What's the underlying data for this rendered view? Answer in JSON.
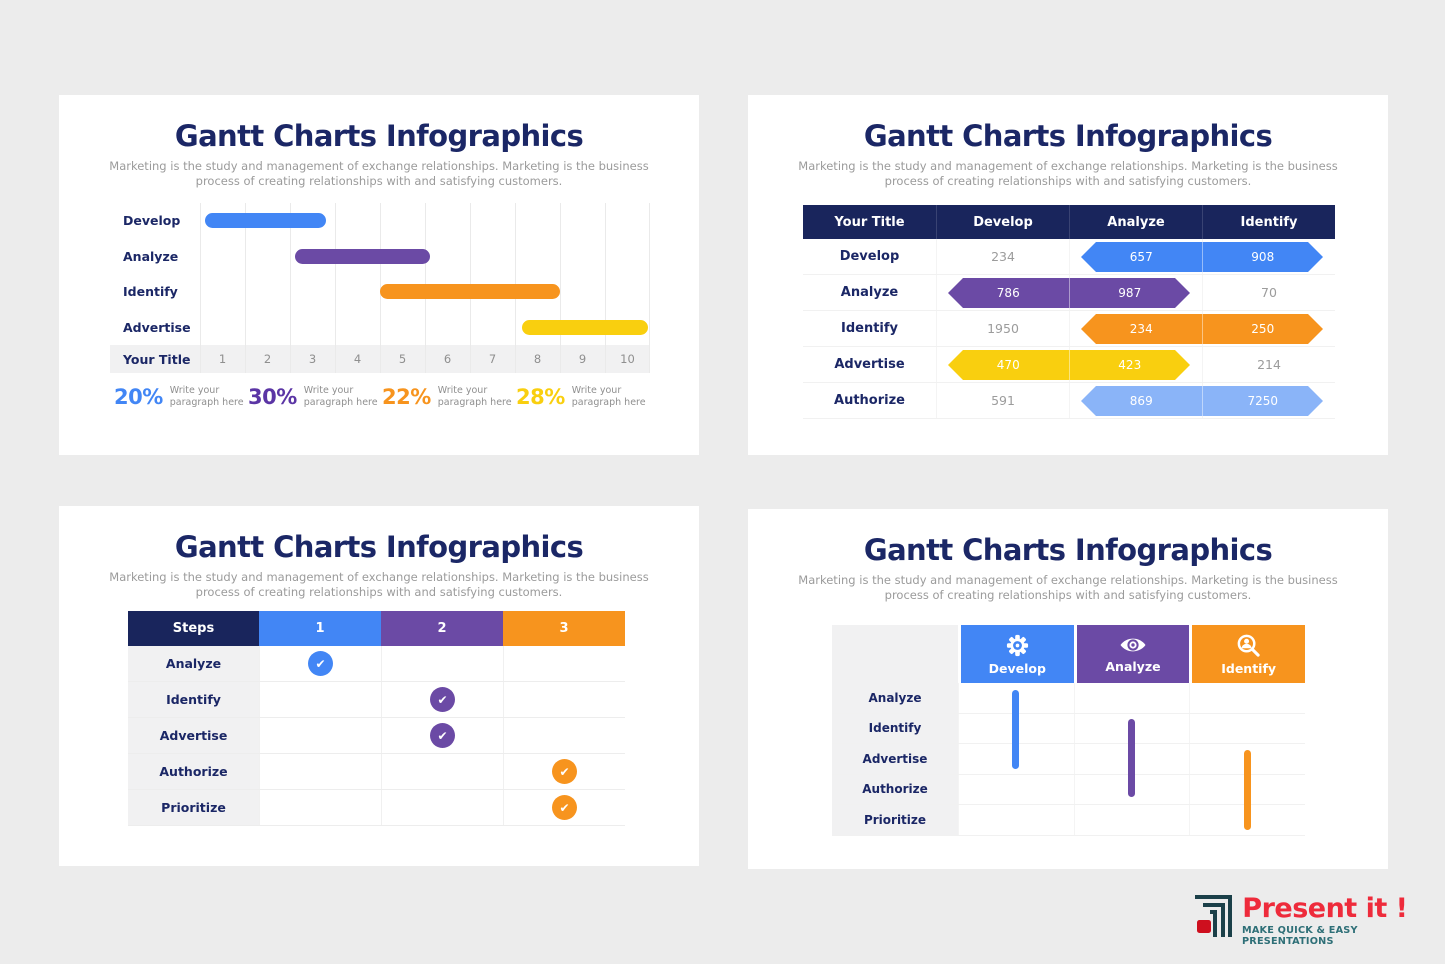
{
  "canvas": {
    "background": "#ECECEC",
    "card_background": "#FFFFFF"
  },
  "theme": {
    "title_navy": "#1B2766",
    "header_navy": "#19255C",
    "blue": "#4286F5",
    "purple": "#6B4AA5",
    "orange": "#F7941E",
    "yellow": "#F9CF0F",
    "light_blue": "#8AB4F8",
    "muted_text": "#9B9B9B",
    "value_gray": "#9C9C9C"
  },
  "panels": [
    {
      "title": "Gantt Charts Infographics",
      "subtitle": "Marketing is the study and management of exchange relationships. Marketing is the business\nprocess of creating relationships with and satisfying customers.",
      "stats": [
        {
          "value": "20%",
          "color": "#4286F5",
          "caption": "Write your\nparagraph here"
        },
        {
          "value": "30%",
          "color": "#5B35A5",
          "caption": "Write your\nparagraph here"
        },
        {
          "value": "22%",
          "color": "#F7941E",
          "caption": "Write your\nparagraph here"
        },
        {
          "value": "28%",
          "color": "#F9CF0F",
          "caption": "Write your\nparagraph here"
        }
      ]
    },
    {
      "title": "Gantt Charts Infographics",
      "subtitle": "Marketing is the study and management of exchange relationships. Marketing is the business\nprocess of creating relationships with and satisfying customers."
    },
    {
      "title": "Gantt Charts Infographics",
      "subtitle": "Marketing is the study and management of exchange relationships. Marketing is the business\nprocess of creating relationships with and satisfying customers."
    },
    {
      "title": "Gantt Charts Infographics",
      "subtitle": "Marketing is the study and management of exchange relationships. Marketing is the business\nprocess of creating relationships with and satisfying customers."
    }
  ],
  "chart_data": [
    {
      "type": "gantt",
      "axis_title": "Your Title",
      "x_ticks": [
        "1",
        "2",
        "3",
        "4",
        "5",
        "6",
        "7",
        "8",
        "9",
        "10"
      ],
      "xlim": [
        0,
        10
      ],
      "rows": [
        {
          "label": "Develop",
          "start": 0.1,
          "end": 2.8,
          "color": "#4286F5"
        },
        {
          "label": "Analyze",
          "start": 2.1,
          "end": 5.1,
          "color": "#6B4AA5"
        },
        {
          "label": "Identify",
          "start": 4.0,
          "end": 8.0,
          "color": "#F7941E"
        },
        {
          "label": "Advertise",
          "start": 7.15,
          "end": 9.95,
          "color": "#F9CF0F"
        }
      ]
    },
    {
      "type": "table",
      "columns": [
        "Your Title",
        "Develop",
        "Analyze",
        "Identify"
      ],
      "rows": [
        {
          "label": "Develop",
          "plain": [
            {
              "col": 0,
              "value": "234"
            }
          ],
          "arrow": {
            "cols": [
              1,
              2
            ],
            "values": [
              "657",
              "908"
            ],
            "color": "#4286F5"
          }
        },
        {
          "label": "Analyze",
          "plain": [
            {
              "col": 2,
              "value": "70"
            }
          ],
          "arrow": {
            "cols": [
              0,
              1
            ],
            "values": [
              "786",
              "987"
            ],
            "color": "#6B4AA5"
          }
        },
        {
          "label": "Identify",
          "plain": [
            {
              "col": 0,
              "value": "1950"
            }
          ],
          "arrow": {
            "cols": [
              1,
              2
            ],
            "values": [
              "234",
              "250"
            ],
            "color": "#F7941E"
          }
        },
        {
          "label": "Advertise",
          "plain": [
            {
              "col": 2,
              "value": "214"
            }
          ],
          "arrow": {
            "cols": [
              0,
              1
            ],
            "values": [
              "470",
              "423"
            ],
            "color": "#F9CF0F"
          }
        },
        {
          "label": "Authorize",
          "plain": [
            {
              "col": 0,
              "value": "591"
            }
          ],
          "arrow": {
            "cols": [
              1,
              2
            ],
            "values": [
              "869",
              "7250"
            ],
            "color": "#8AB4F8"
          }
        }
      ]
    },
    {
      "type": "step-check-table",
      "columns": [
        {
          "label": "Steps",
          "color": "#19255C"
        },
        {
          "label": "1",
          "color": "#4286F5"
        },
        {
          "label": "2",
          "color": "#6B4AA5"
        },
        {
          "label": "3",
          "color": "#F7941E"
        }
      ],
      "check_glyph": "✔",
      "rows": [
        {
          "label": "Analyze",
          "checked_step": 1
        },
        {
          "label": "Identify",
          "checked_step": 2
        },
        {
          "label": "Advertise",
          "checked_step": 2
        },
        {
          "label": "Authorize",
          "checked_step": 3
        },
        {
          "label": "Prioritize",
          "checked_step": 3
        }
      ]
    },
    {
      "type": "gantt-column-table",
      "columns": [
        {
          "label": "Develop",
          "color": "#4286F5",
          "icon": "gear"
        },
        {
          "label": "Analyze",
          "color": "#6B4AA5",
          "icon": "eye"
        },
        {
          "label": "Identify",
          "color": "#F7941E",
          "icon": "person-search"
        }
      ],
      "row_labels": [
        "Analyze",
        "Identify",
        "Advertise",
        "Authorize",
        "Prioritize"
      ],
      "bars": [
        {
          "column": 0,
          "start_row": 0.22,
          "end_row": 2.83,
          "color": "#4286F5"
        },
        {
          "column": 1,
          "start_row": 1.18,
          "end_row": 3.75,
          "color": "#6B4AA5"
        },
        {
          "column": 2,
          "start_row": 2.2,
          "end_row": 4.83,
          "color": "#F7941E"
        }
      ]
    }
  ],
  "logo": {
    "brand": "Present it !",
    "tagline": "MAKE QUICK & EASY PRESENTATIONS",
    "brand_color": "#EE2B3B",
    "tagline_color": "#2E6F77",
    "mark_color": "#1B4049",
    "mark_accent": "#CE0F1E"
  }
}
